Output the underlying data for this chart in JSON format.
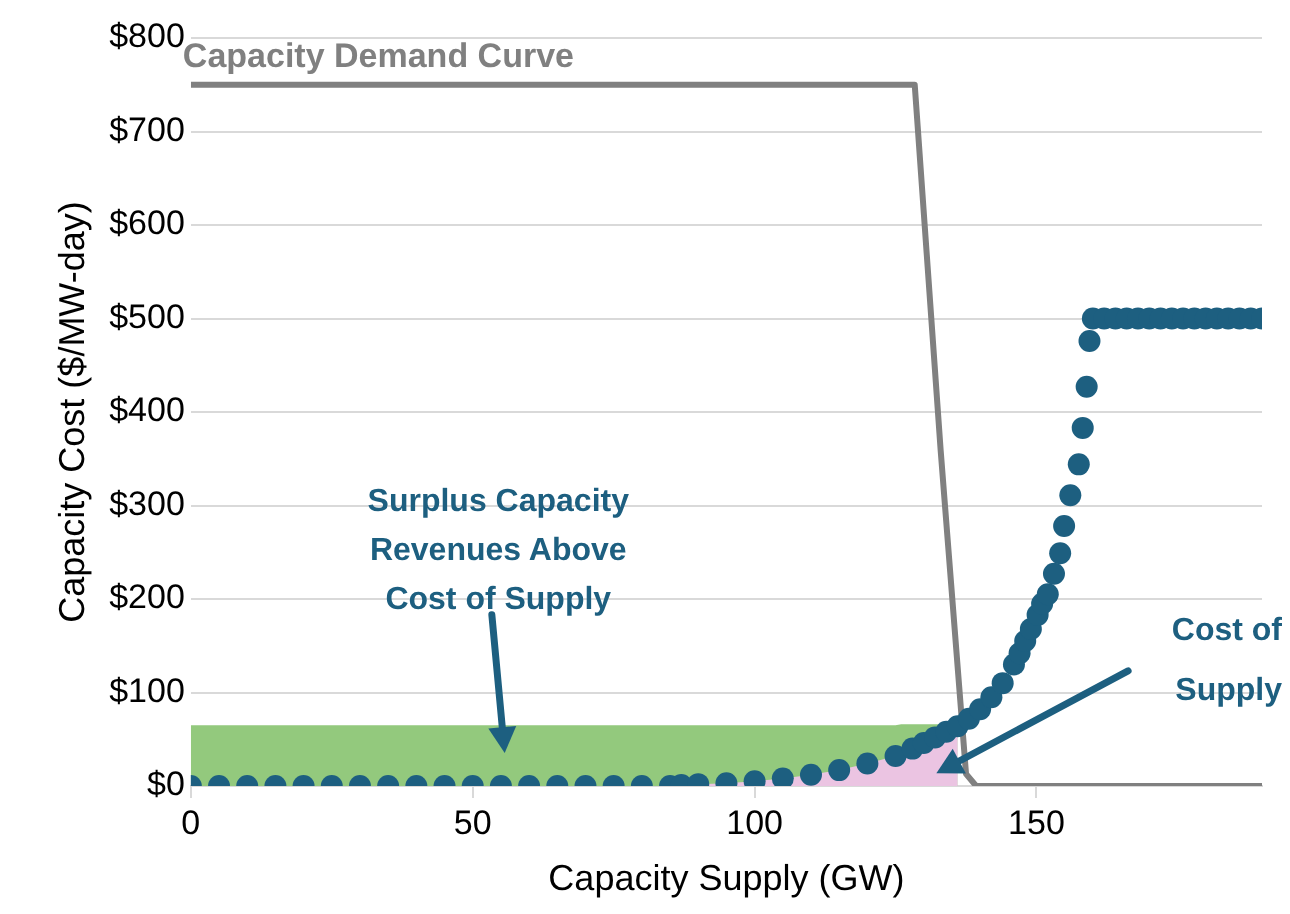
{
  "chart_data": {
    "type": "scatter",
    "xlabel": "Capacity Supply (GW)",
    "ylabel": "Capacity Cost ($/MW-day)",
    "xlim": [
      0,
      190
    ],
    "xticks": [
      0,
      50,
      100,
      150
    ],
    "ylim": [
      0,
      800
    ],
    "yticks": [
      {
        "value": 0,
        "label": "$0"
      },
      {
        "value": 100,
        "label": "$100"
      },
      {
        "value": 200,
        "label": "$200"
      },
      {
        "value": 300,
        "label": "$300"
      },
      {
        "value": 400,
        "label": "$400"
      },
      {
        "value": 500,
        "label": "$500"
      },
      {
        "value": 600,
        "label": "$600"
      },
      {
        "value": 700,
        "label": "$700"
      },
      {
        "value": 800,
        "label": "$800"
      }
    ],
    "grid": "y",
    "legend": false,
    "series": [
      {
        "type": "area",
        "color": "#93c97d",
        "x": [
          0,
          125,
          126,
          136
        ],
        "values": [
          65,
          65,
          66,
          66
        ]
      },
      {
        "type": "line",
        "name": "Capacity Demand Curve",
        "color": "#808080",
        "line_style": "solid",
        "x": [
          0,
          128.4,
          133,
          137.5,
          139.3,
          190
        ],
        "values": [
          750,
          750,
          359,
          13,
          0,
          0
        ]
      },
      {
        "color": "#1d5f80",
        "marker": "circle",
        "x": [
          0,
          5,
          10,
          15,
          20,
          25,
          30,
          35,
          40,
          45,
          50,
          55,
          60,
          65,
          70,
          75,
          80,
          85,
          87,
          90,
          95,
          100,
          105,
          110,
          115,
          120,
          125,
          128,
          130,
          132,
          134,
          136,
          138,
          140,
          142,
          144,
          146,
          147,
          148,
          149,
          150.2,
          151,
          152,
          153.1,
          154.2,
          154.9,
          156,
          157.5,
          158.2,
          158.9,
          159.4,
          160,
          162,
          164,
          166,
          168,
          170,
          172,
          174,
          176,
          178,
          180,
          182,
          184,
          186,
          188,
          190
        ],
        "values": [
          0,
          0,
          0,
          0,
          0,
          0,
          0,
          0,
          0,
          0,
          0,
          0,
          0,
          0,
          0,
          0,
          0,
          0,
          1,
          2,
          3,
          5,
          8,
          12,
          17,
          24,
          32,
          40,
          46,
          52,
          58,
          64,
          72,
          82,
          95,
          110,
          130,
          142,
          155,
          168,
          183,
          195,
          205,
          227,
          249,
          278,
          311,
          344,
          383,
          427,
          476,
          500,
          500,
          500,
          500,
          500,
          500,
          500,
          500,
          500,
          500,
          500,
          500,
          500,
          500,
          500,
          500
        ]
      }
    ],
    "annotations": [
      "Surplus Capacity Revenues Above Cost of Supply",
      "Cost of Supply"
    ]
  }
}
